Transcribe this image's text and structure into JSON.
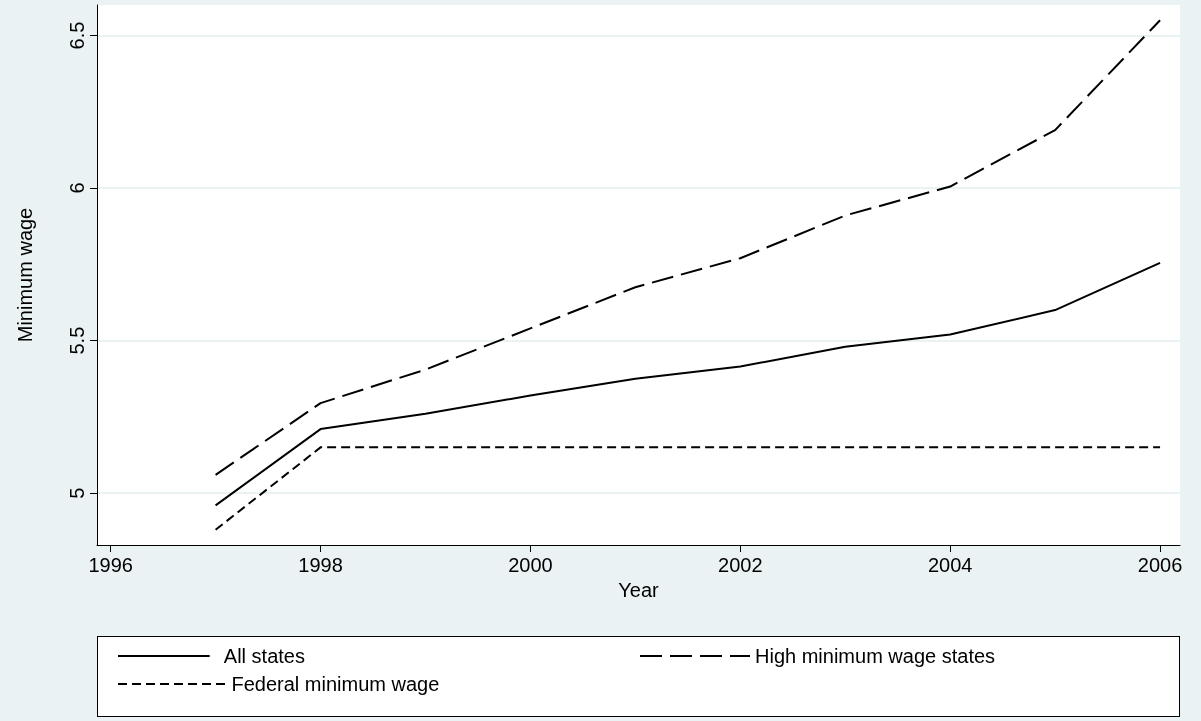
{
  "chart_data": {
    "type": "line",
    "xlabel": "Year",
    "ylabel": "Minimum wage",
    "x": [
      1997,
      1998,
      1999,
      2000,
      2001,
      2002,
      2003,
      2004,
      2005,
      2006
    ],
    "series": [
      {
        "name": "All states",
        "color": "#000000",
        "line_style": "solid",
        "values": [
          4.96,
          5.21,
          5.26,
          5.32,
          5.375,
          5.415,
          5.48,
          5.52,
          5.6,
          5.755
        ]
      },
      {
        "name": "High minimum wage states",
        "color": "#000000",
        "line_style": "dashed",
        "values": [
          5.06,
          5.295,
          5.405,
          5.54,
          5.675,
          5.77,
          5.91,
          6.005,
          6.19,
          6.55
        ]
      },
      {
        "name": "Federal minimum wage",
        "color": "#000000",
        "line_style": "dashed",
        "values": [
          4.88,
          5.15,
          5.15,
          5.15,
          5.15,
          5.15,
          5.15,
          5.15,
          5.15,
          5.15
        ]
      }
    ],
    "xlim": [
      1995.87,
      2006.19
    ],
    "xticks": [
      1996,
      1998,
      2000,
      2002,
      2004,
      2006
    ],
    "ylim": [
      4.83,
      6.6
    ],
    "yticks": [
      5,
      5.5,
      6,
      6.5
    ],
    "grid": "y",
    "legend": "bottom",
    "marker": "none"
  }
}
